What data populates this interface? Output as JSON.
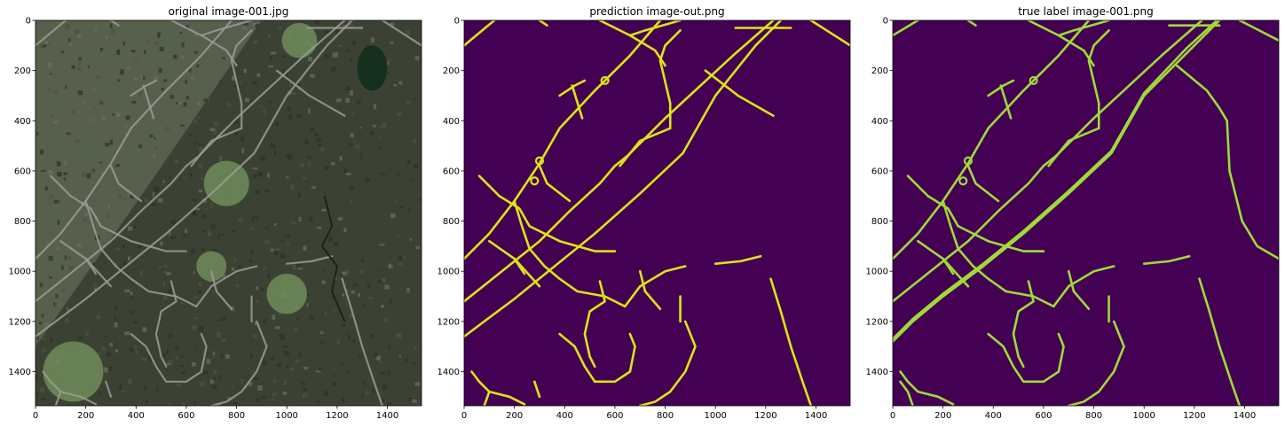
{
  "chart_data": [
    {
      "type": "image",
      "title": "original image-001.jpg",
      "content": "aerial-photo",
      "xlim": [
        0,
        1536
      ],
      "ylim": [
        1536,
        0
      ],
      "xticks": [
        0,
        200,
        400,
        600,
        800,
        1000,
        1200,
        1400
      ],
      "yticks": [
        0,
        200,
        400,
        600,
        800,
        1000,
        1200,
        1400
      ],
      "colors": {
        "forest": "#3c4233",
        "residential": "#5a6350",
        "road": "#9a9c95",
        "lawn": "#6f8c5a",
        "pond": "#15301f"
      }
    },
    {
      "type": "heatmap",
      "title": "prediction image-out.png",
      "content": "road-mask",
      "xlim": [
        0,
        1536
      ],
      "ylim": [
        1536,
        0
      ],
      "xticks": [
        0,
        200,
        400,
        600,
        800,
        1000,
        1200,
        1400
      ],
      "yticks": [
        0,
        200,
        400,
        600,
        800,
        1000,
        1200,
        1400
      ],
      "colormap": "viridis",
      "colors": {
        "background": "#440154",
        "road": "#dde318"
      },
      "roads": [
        [
          [
            0,
            100
          ],
          [
            120,
            0
          ]
        ],
        [
          [
            300,
            0
          ],
          [
            330,
            20
          ]
        ],
        [
          [
            1080,
            30
          ],
          [
            1300,
            30
          ]
        ],
        [
          [
            1380,
            0
          ],
          [
            1536,
            100
          ]
        ],
        [
          [
            0,
            1260
          ],
          [
            80,
            1200
          ],
          [
            200,
            1110
          ],
          [
            360,
            980
          ],
          [
            520,
            850
          ],
          [
            700,
            690
          ],
          [
            870,
            530
          ],
          [
            1000,
            300
          ],
          [
            1160,
            100
          ],
          [
            1260,
            0
          ]
        ],
        [
          [
            0,
            1120
          ],
          [
            150,
            1000
          ],
          [
            300,
            880
          ],
          [
            420,
            760
          ],
          [
            540,
            650
          ],
          [
            600,
            580
          ],
          [
            650,
            540
          ],
          [
            800,
            390
          ],
          [
            1070,
            140
          ],
          [
            1230,
            0
          ]
        ],
        [
          [
            0,
            950
          ],
          [
            100,
            850
          ],
          [
            200,
            720
          ],
          [
            300,
            570
          ],
          [
            380,
            430
          ],
          [
            520,
            280
          ],
          [
            660,
            140
          ],
          [
            780,
            0
          ]
        ],
        [
          [
            380,
            300
          ],
          [
            440,
            260
          ],
          [
            480,
            240
          ]
        ],
        [
          [
            430,
            260
          ],
          [
            470,
            390
          ]
        ],
        [
          [
            540,
            0
          ],
          [
            660,
            60
          ],
          [
            720,
            40
          ],
          [
            860,
            0
          ]
        ],
        [
          [
            660,
            60
          ],
          [
            760,
            120
          ],
          [
            800,
            180
          ]
        ],
        [
          [
            860,
            40
          ],
          [
            800,
            100
          ],
          [
            780,
            160
          ],
          [
            820,
            330
          ],
          [
            820,
            430
          ]
        ],
        [
          [
            820,
            430
          ],
          [
            700,
            480
          ],
          [
            620,
            580
          ]
        ],
        [
          [
            960,
            200
          ],
          [
            1090,
            300
          ],
          [
            1230,
            380
          ]
        ],
        [
          [
            140,
            700
          ],
          [
            220,
            750
          ],
          [
            260,
            820
          ],
          [
            380,
            880
          ],
          [
            520,
            920
          ],
          [
            600,
            920
          ]
        ],
        [
          [
            300,
            580
          ],
          [
            330,
            650
          ],
          [
            420,
            720
          ]
        ],
        [
          [
            60,
            620
          ],
          [
            140,
            700
          ]
        ],
        [
          [
            200,
            720
          ],
          [
            230,
            820
          ],
          [
            260,
            910
          ],
          [
            320,
            980
          ],
          [
            380,
            1030
          ],
          [
            450,
            1080
          ],
          [
            560,
            1100
          ],
          [
            640,
            1140
          ]
        ],
        [
          [
            100,
            880
          ],
          [
            200,
            950
          ],
          [
            240,
            1010
          ]
        ],
        [
          [
            200,
            950
          ],
          [
            300,
            1060
          ]
        ],
        [
          [
            540,
            1040
          ],
          [
            560,
            1120
          ],
          [
            500,
            1160
          ],
          [
            480,
            1250
          ],
          [
            500,
            1340
          ],
          [
            520,
            1380
          ]
        ],
        [
          [
            640,
            1140
          ],
          [
            700,
            1060
          ],
          [
            800,
            1000
          ],
          [
            880,
            980
          ]
        ],
        [
          [
            700,
            1000
          ],
          [
            720,
            1080
          ],
          [
            780,
            1150
          ]
        ],
        [
          [
            860,
            1100
          ],
          [
            860,
            1200
          ]
        ],
        [
          [
            380,
            1250
          ],
          [
            440,
            1300
          ],
          [
            480,
            1380
          ],
          [
            520,
            1440
          ],
          [
            600,
            1440
          ],
          [
            660,
            1400
          ],
          [
            680,
            1300
          ],
          [
            660,
            1250
          ]
        ],
        [
          [
            30,
            1400
          ],
          [
            60,
            1440
          ],
          [
            100,
            1480
          ],
          [
            180,
            1500
          ],
          [
            240,
            1530
          ]
        ],
        [
          [
            280,
            1440
          ],
          [
            300,
            1500
          ]
        ],
        [
          [
            100,
            1480
          ],
          [
            80,
            1536
          ]
        ],
        [
          [
            880,
            1200
          ],
          [
            920,
            1300
          ],
          [
            880,
            1400
          ],
          [
            820,
            1480
          ],
          [
            760,
            1520
          ],
          [
            700,
            1536
          ]
        ],
        [
          [
            1000,
            970
          ],
          [
            1100,
            960
          ],
          [
            1180,
            940
          ]
        ],
        [
          [
            1220,
            1030
          ],
          [
            1260,
            1160
          ],
          [
            1300,
            1300
          ],
          [
            1350,
            1450
          ],
          [
            1380,
            1536
          ]
        ]
      ],
      "circles": [
        [
          300,
          560,
          14
        ],
        [
          560,
          240,
          14
        ],
        [
          280,
          640,
          14
        ]
      ]
    },
    {
      "type": "heatmap",
      "title": "true label image-001.png",
      "content": "road-mask",
      "xlim": [
        0,
        1536
      ],
      "ylim": [
        1536,
        0
      ],
      "xticks": [
        0,
        200,
        400,
        600,
        800,
        1000,
        1200,
        1400
      ],
      "yticks": [
        0,
        200,
        400,
        600,
        800,
        1000,
        1200,
        1400
      ],
      "colormap": "viridis",
      "colors": {
        "background": "#440154",
        "road": "#a0da39"
      },
      "roads": [
        [
          [
            0,
            60
          ],
          [
            100,
            0
          ]
        ],
        [
          [
            300,
            0
          ],
          [
            330,
            20
          ]
        ],
        [
          [
            1100,
            20
          ],
          [
            1300,
            20
          ]
        ],
        [
          [
            1380,
            0
          ],
          [
            1536,
            80
          ]
        ],
        [
          [
            0,
            1280
          ],
          [
            80,
            1200
          ],
          [
            200,
            1100
          ],
          [
            360,
            980
          ],
          [
            520,
            850
          ],
          [
            700,
            690
          ],
          [
            870,
            530
          ],
          [
            1000,
            300
          ],
          [
            1180,
            120
          ],
          [
            1300,
            0
          ]
        ],
        [
          [
            0,
            1270
          ],
          [
            80,
            1190
          ],
          [
            200,
            1090
          ],
          [
            360,
            970
          ],
          [
            520,
            840
          ],
          [
            700,
            680
          ],
          [
            870,
            520
          ],
          [
            1000,
            290
          ],
          [
            1170,
            110
          ],
          [
            1290,
            0
          ]
        ],
        [
          [
            0,
            1120
          ],
          [
            150,
            1000
          ],
          [
            300,
            880
          ],
          [
            420,
            760
          ],
          [
            540,
            650
          ],
          [
            600,
            580
          ],
          [
            650,
            540
          ],
          [
            800,
            390
          ],
          [
            1070,
            140
          ],
          [
            1230,
            0
          ]
        ],
        [
          [
            0,
            950
          ],
          [
            100,
            850
          ],
          [
            200,
            720
          ],
          [
            300,
            570
          ],
          [
            380,
            430
          ],
          [
            520,
            280
          ],
          [
            660,
            140
          ],
          [
            780,
            0
          ]
        ],
        [
          [
            380,
            300
          ],
          [
            440,
            260
          ],
          [
            480,
            240
          ]
        ],
        [
          [
            430,
            260
          ],
          [
            470,
            390
          ]
        ],
        [
          [
            540,
            0
          ],
          [
            660,
            60
          ],
          [
            720,
            40
          ],
          [
            860,
            0
          ]
        ],
        [
          [
            660,
            60
          ],
          [
            760,
            120
          ],
          [
            800,
            180
          ]
        ],
        [
          [
            860,
            40
          ],
          [
            800,
            100
          ],
          [
            780,
            160
          ],
          [
            820,
            330
          ],
          [
            820,
            430
          ]
        ],
        [
          [
            820,
            430
          ],
          [
            700,
            480
          ],
          [
            620,
            580
          ]
        ],
        [
          [
            1130,
            180
          ],
          [
            1250,
            280
          ],
          [
            1300,
            350
          ],
          [
            1330,
            400
          ],
          [
            1340,
            600
          ],
          [
            1390,
            800
          ],
          [
            1450,
            900
          ],
          [
            1536,
            950
          ]
        ],
        [
          [
            140,
            700
          ],
          [
            220,
            750
          ],
          [
            260,
            820
          ],
          [
            380,
            880
          ],
          [
            520,
            920
          ],
          [
            600,
            920
          ]
        ],
        [
          [
            300,
            580
          ],
          [
            330,
            650
          ],
          [
            420,
            720
          ]
        ],
        [
          [
            60,
            620
          ],
          [
            140,
            700
          ]
        ],
        [
          [
            200,
            720
          ],
          [
            230,
            820
          ],
          [
            260,
            910
          ],
          [
            320,
            980
          ],
          [
            380,
            1030
          ],
          [
            450,
            1080
          ],
          [
            560,
            1100
          ],
          [
            640,
            1140
          ]
        ],
        [
          [
            100,
            880
          ],
          [
            200,
            950
          ],
          [
            240,
            1010
          ]
        ],
        [
          [
            200,
            950
          ],
          [
            300,
            1060
          ]
        ],
        [
          [
            540,
            1040
          ],
          [
            560,
            1120
          ],
          [
            500,
            1160
          ],
          [
            480,
            1250
          ],
          [
            500,
            1340
          ],
          [
            520,
            1380
          ]
        ],
        [
          [
            640,
            1140
          ],
          [
            700,
            1060
          ],
          [
            800,
            1000
          ],
          [
            880,
            980
          ]
        ],
        [
          [
            700,
            1000
          ],
          [
            720,
            1080
          ],
          [
            780,
            1150
          ]
        ],
        [
          [
            860,
            1100
          ],
          [
            860,
            1200
          ]
        ],
        [
          [
            1000,
            970
          ],
          [
            1100,
            960
          ],
          [
            1180,
            940
          ]
        ],
        [
          [
            380,
            1250
          ],
          [
            440,
            1300
          ],
          [
            480,
            1380
          ],
          [
            520,
            1440
          ],
          [
            600,
            1440
          ],
          [
            660,
            1400
          ],
          [
            680,
            1300
          ],
          [
            660,
            1250
          ]
        ],
        [
          [
            30,
            1400
          ],
          [
            60,
            1440
          ],
          [
            100,
            1480
          ],
          [
            180,
            1500
          ],
          [
            240,
            1530
          ]
        ],
        [
          [
            30,
            1440
          ],
          [
            60,
            1480
          ],
          [
            80,
            1536
          ]
        ],
        [
          [
            880,
            1200
          ],
          [
            920,
            1300
          ],
          [
            880,
            1400
          ],
          [
            820,
            1480
          ],
          [
            760,
            1520
          ],
          [
            700,
            1536
          ]
        ],
        [
          [
            1220,
            1030
          ],
          [
            1260,
            1160
          ],
          [
            1300,
            1300
          ],
          [
            1350,
            1450
          ],
          [
            1380,
            1536
          ]
        ]
      ],
      "circles": [
        [
          300,
          560,
          14
        ],
        [
          560,
          240,
          14
        ],
        [
          280,
          640,
          14
        ]
      ]
    }
  ]
}
